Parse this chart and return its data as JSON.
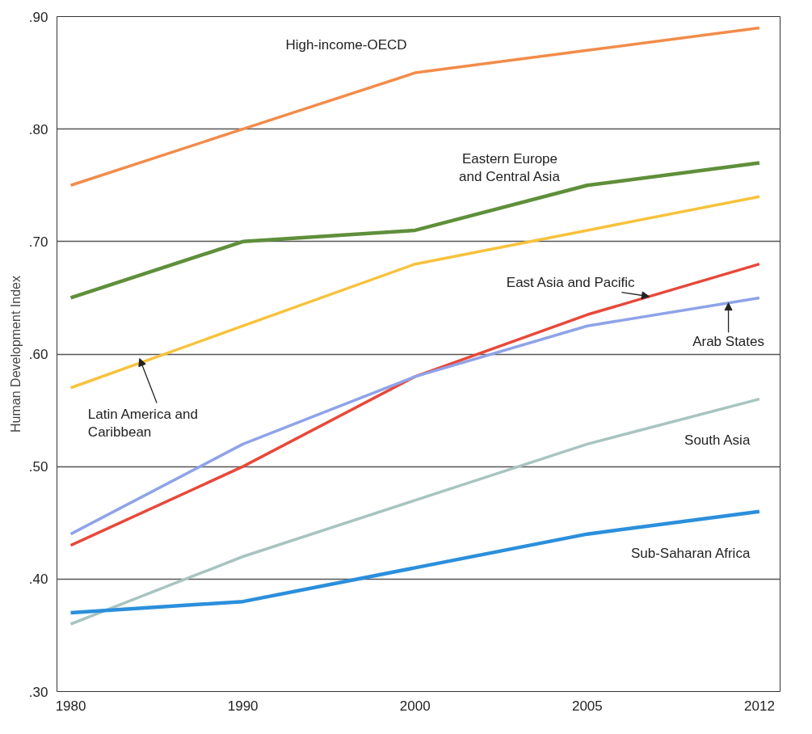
{
  "chart_data": {
    "type": "line",
    "ylabel": "Human Development Index",
    "categories": [
      "1980",
      "1990",
      "2000",
      "2005",
      "2012"
    ],
    "ylim": [
      0.3,
      0.9
    ],
    "yticks": [
      {
        "value": 0.3,
        "label": ".30"
      },
      {
        "value": 0.4,
        "label": ".40"
      },
      {
        "value": 0.5,
        "label": ".50"
      },
      {
        "value": 0.6,
        "label": ".60"
      },
      {
        "value": 0.7,
        "label": ".70"
      },
      {
        "value": 0.8,
        "label": ".80"
      },
      {
        "value": 0.9,
        "label": ".90"
      }
    ],
    "grid": "y",
    "marker": "none",
    "line_style": "solid",
    "series": [
      {
        "name": "High-income-OECD",
        "color": "#f28c4a",
        "values": [
          0.75,
          0.8,
          0.85,
          0.87,
          0.89
        ]
      },
      {
        "name": "Eastern Europe and Central Asia",
        "color": "#5f8f3a",
        "values": [
          0.65,
          0.7,
          0.71,
          0.75,
          0.77
        ]
      },
      {
        "name": "Latin America and Caribbean",
        "color": "#f7c23c",
        "values": [
          0.57,
          0.625,
          0.68,
          0.71,
          0.74
        ]
      },
      {
        "name": "East Asia and Pacific",
        "color": "#e8483a",
        "values": [
          0.43,
          0.5,
          0.58,
          0.635,
          0.68
        ]
      },
      {
        "name": "Arab States",
        "color": "#8fa3e8",
        "values": [
          0.44,
          0.52,
          0.58,
          0.625,
          0.65
        ]
      },
      {
        "name": "South Asia",
        "color": "#a8c4c0",
        "values": [
          0.36,
          0.42,
          0.47,
          0.52,
          0.56
        ]
      },
      {
        "name": "Sub-Saharan Africa",
        "color": "#2b8fdc",
        "values": [
          0.37,
          0.38,
          0.41,
          0.44,
          0.46
        ]
      }
    ]
  }
}
